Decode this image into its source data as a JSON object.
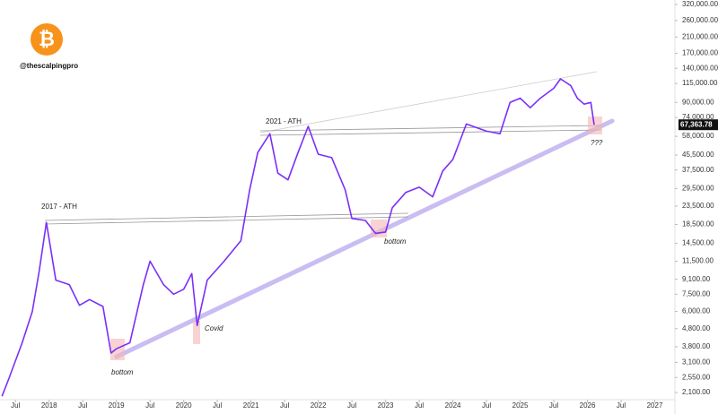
{
  "chart_data": {
    "type": "line",
    "log_scale": true,
    "handle": "@thescalpingpro",
    "logo": "₿",
    "annotations": [
      "2017 - ATH",
      "2021 - ATH",
      "bottom",
      "bottom",
      "Covid",
      "???"
    ],
    "x": [
      2017.3,
      2017.4,
      2017.6,
      2017.75,
      2017.85,
      2017.96,
      2018.1,
      2018.3,
      2018.45,
      2018.6,
      2018.8,
      2018.92,
      2019.0,
      2019.2,
      2019.4,
      2019.5,
      2019.7,
      2019.85,
      2020.0,
      2020.12,
      2020.2,
      2020.35,
      2020.6,
      2020.85,
      2020.98,
      2021.1,
      2021.28,
      2021.4,
      2021.55,
      2021.7,
      2021.85,
      2022.0,
      2022.2,
      2022.4,
      2022.5,
      2022.7,
      2022.85,
      2023.0,
      2023.1,
      2023.3,
      2023.5,
      2023.7,
      2023.85,
      2024.0,
      2024.2,
      2024.5,
      2024.7,
      2024.85,
      2025.0,
      2025.15,
      2025.3,
      2025.5,
      2025.6,
      2025.75,
      2025.85,
      2025.95,
      2026.05,
      2026.1
    ],
    "series": [
      {
        "name": "BTC",
        "color": "#7b2ff7",
        "values": [
          2000,
          2500,
          4000,
          6000,
          10000,
          19000,
          9000,
          8500,
          6500,
          7000,
          6400,
          3500,
          3700,
          4000,
          8500,
          11500,
          8500,
          7500,
          8000,
          9800,
          5000,
          9000,
          11500,
          15000,
          29000,
          47000,
          60000,
          36000,
          33000,
          47000,
          66000,
          46000,
          44000,
          29000,
          20000,
          19500,
          16500,
          16800,
          23000,
          28000,
          30000,
          26500,
          37000,
          43000,
          68000,
          62000,
          60000,
          90000,
          95000,
          84000,
          95000,
          108000,
          122000,
          112000,
          95000,
          88000,
          90000,
          67363.78
        ],
        "value_labels": [
          null,
          null,
          null,
          null,
          null,
          null,
          null,
          null,
          null,
          null,
          null,
          null,
          null,
          null,
          null,
          null,
          null,
          null,
          null,
          null,
          null,
          null,
          null,
          null,
          null,
          null,
          null,
          null,
          null,
          null,
          null,
          null,
          null,
          null,
          null,
          null,
          null,
          null,
          null,
          null,
          null,
          null,
          null,
          null,
          null,
          null,
          null,
          null,
          null,
          null,
          null,
          null,
          null,
          null,
          null,
          null,
          null,
          "67,363.78"
        ]
      }
    ],
    "xlim": [
      2017.27,
      2027.3
    ],
    "xticks": [
      {
        "value": 2017.5,
        "label": "Jul"
      },
      2018,
      {
        "value": 2018.5,
        "label": "Jul"
      },
      2019,
      {
        "value": 2019.5,
        "label": "Jul"
      },
      2020,
      {
        "value": 2020.5,
        "label": "Jul"
      },
      2021,
      {
        "value": 2021.5,
        "label": "Jul"
      },
      2022,
      {
        "value": 2022.5,
        "label": "Jul"
      },
      2023,
      {
        "value": 2023.5,
        "label": "Jul"
      },
      2024,
      {
        "value": 2024.5,
        "label": "Jul"
      },
      2025,
      {
        "value": 2025.5,
        "label": "Jul"
      },
      2026,
      {
        "value": 2026.5,
        "label": "Jul"
      },
      2027
    ],
    "ylim": [
      1914,
      339000
    ],
    "yticks": [
      {
        "value": 320000,
        "label": "320,000.00"
      },
      {
        "value": 260000,
        "label": "260,000.00"
      },
      {
        "value": 210000,
        "label": "210,000.00"
      },
      {
        "value": 170000,
        "label": "170,000.00"
      },
      {
        "value": 140000,
        "label": "140,000.00"
      },
      {
        "value": 115000,
        "label": "115,000.00"
      },
      {
        "value": 90000,
        "label": "90,000.00"
      },
      {
        "value": 74000,
        "label": "74,000.00"
      },
      {
        "value": 58000,
        "label": "58,000.00"
      },
      {
        "value": 45500,
        "label": "45,500.00"
      },
      {
        "value": 37500,
        "label": "37,500.00"
      },
      {
        "value": 29500,
        "label": "29,500.00"
      },
      {
        "value": 23500,
        "label": "23,500.00"
      },
      {
        "value": 18500,
        "label": "18,500.00"
      },
      {
        "value": 14500,
        "label": "14,500.00"
      },
      {
        "value": 11500,
        "label": "11,500.00"
      },
      {
        "value": 9100,
        "label": "9,100.00"
      },
      {
        "value": 7500,
        "label": "7,500.00"
      },
      {
        "value": 6000,
        "label": "6,000.00"
      },
      {
        "value": 4800,
        "label": "4,800.00"
      },
      {
        "value": 3800,
        "label": "3,800.00"
      },
      {
        "value": 3100,
        "label": "3,100.00"
      },
      {
        "value": 2550,
        "label": "2,550.00"
      },
      {
        "value": 2100,
        "label": "2,100.00"
      }
    ]
  }
}
